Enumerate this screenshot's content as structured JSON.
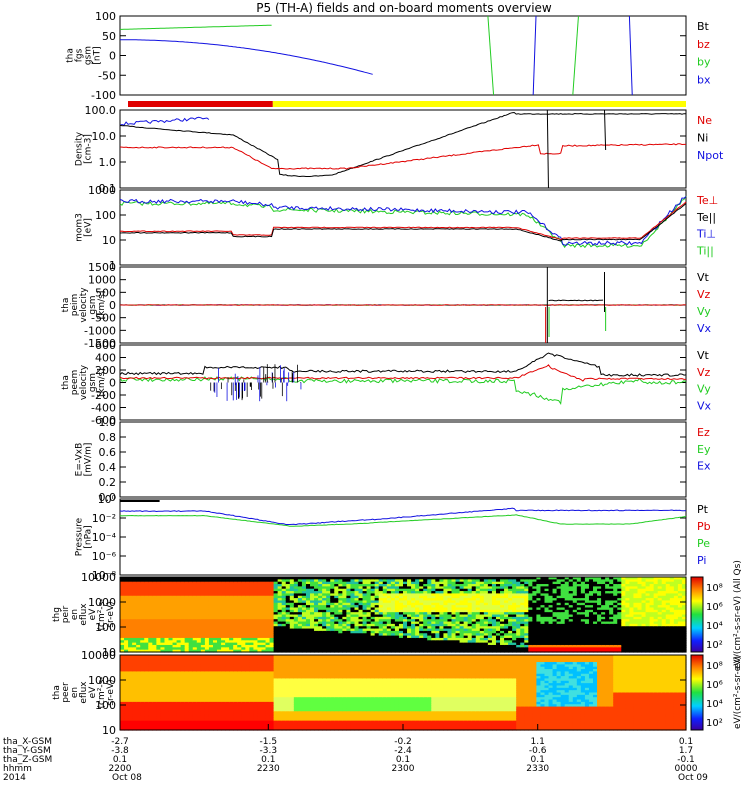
{
  "title": "P5 (TH-A) fields and on-board moments overview",
  "colors": {
    "black": "#000000",
    "red": "#e00000",
    "green": "#22cc22",
    "blue": "#1010e0",
    "yellow": "#ffff00"
  },
  "chart_data": [
    {
      "type": "line",
      "ylabel": [
        "tha",
        "fgs",
        "gsm",
        "[nT]"
      ],
      "yticks": [
        "100",
        "50",
        "0",
        "-50",
        "-100"
      ],
      "legend": [
        "Bt",
        "bz",
        "by",
        "bx"
      ]
    },
    {
      "type": "bar",
      "note": "",
      "legend": []
    },
    {
      "type": "line",
      "ylabel": [
        "Density",
        "[cm-3]"
      ],
      "yticks": [
        "100.0",
        "10.0",
        "1.0",
        "0.1"
      ],
      "legend": [
        "Ne",
        "Ni",
        "Npot"
      ],
      "log": true
    },
    {
      "type": "line",
      "ylabel": [
        "mom3",
        "[eV]"
      ],
      "yticks": [
        "1000",
        "100",
        "10",
        "1"
      ],
      "legend": [
        "Te⊥",
        "Te||",
        "Ti⊥",
        "Ti||"
      ],
      "log": true
    },
    {
      "type": "line",
      "ylabel": [
        "tha",
        "peim",
        "velocity",
        "gsm",
        "[km/s]"
      ],
      "yticks": [
        "1500",
        "1000",
        "500",
        "0",
        "-500",
        "-1000",
        "-1500"
      ],
      "legend": [
        "Vt",
        "Vz",
        "Vy",
        "Vx"
      ]
    },
    {
      "type": "line",
      "ylabel": [
        "tha",
        "peem",
        "velocity",
        "gsm",
        "[km/s]"
      ],
      "yticks": [
        "600",
        "400",
        "200",
        "0",
        "-200",
        "-400",
        "-600"
      ],
      "legend": [
        "Vt",
        "Vz",
        "Vy",
        "Vx"
      ]
    },
    {
      "type": "line",
      "ylabel": [
        "E=-VxB",
        "[mV/m]"
      ],
      "yticks": [
        "1.0",
        "0.8",
        "0.6",
        "0.4",
        "0.2",
        "0.0"
      ],
      "legend": [
        "Ez",
        "Ey",
        "Ex"
      ]
    },
    {
      "type": "line",
      "ylabel": [
        "Pressure",
        "[nPa]"
      ],
      "yticks": [
        "10⁰",
        "10⁻²",
        "10⁻⁴",
        "10⁻⁶",
        "10⁻⁸"
      ],
      "legend": [
        "Pt",
        "Pb",
        "Pe",
        "Pi"
      ],
      "log": true
    },
    {
      "type": "heatmap",
      "ylabel": [
        "thg",
        "peir",
        "en",
        "eflux",
        "eV",
        "(cm²-s-",
        "sr-eV)"
      ],
      "yticks": [
        "10000",
        "1000",
        "100",
        "10"
      ],
      "colorbar": {
        "ticks": [
          "10⁸",
          "10⁶",
          "10⁴",
          "10²"
        ],
        "label": "eV/(cm²-s-sr-eV) (All Qs)"
      }
    },
    {
      "type": "heatmap",
      "ylabel": [
        "tha",
        "peer",
        "en",
        "eflux",
        "eV",
        "(cm²-s-",
        "sr-eV)"
      ],
      "yticks": [
        "10000",
        "1000",
        "100",
        "10"
      ],
      "colorbar": {
        "ticks": [
          "10⁸",
          "10⁶",
          "10⁴",
          "10²"
        ],
        "label": "eV/(cm²-s-sr-eV)"
      }
    }
  ],
  "x_axis": {
    "row_labels": [
      "tha_X-GSM",
      "tha_Y-GSM",
      "tha_Z-GSM",
      "hhmm",
      "2014"
    ],
    "ticks": [
      {
        "values": [
          "-2.7",
          "-3.8",
          "0.1",
          "2200",
          "Oct 08"
        ]
      },
      {
        "values": [
          "-1.5",
          "-3.3",
          "0.1",
          "2230",
          ""
        ]
      },
      {
        "values": [
          "-0.2",
          "-2.4",
          "0.1",
          "2300",
          ""
        ]
      },
      {
        "values": [
          "1.1",
          "-0.6",
          "0.1",
          "2330",
          ""
        ]
      },
      {
        "values": [
          "0.1",
          "1.7",
          "-0.1",
          "0000",
          "Oct 09"
        ]
      }
    ]
  }
}
